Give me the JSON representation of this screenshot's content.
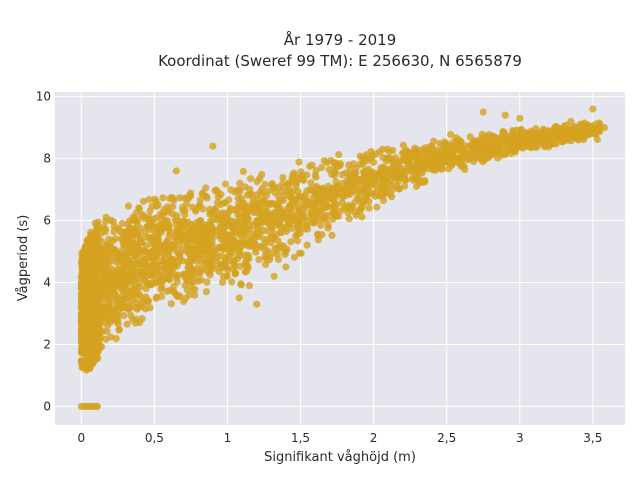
{
  "chart_data": {
    "type": "scatter",
    "title_line1": "År 1979 - 2019",
    "title_line2": "Koordinat (Sweref 99 TM): E 256630, N 6565879",
    "xlabel": "Signifikant våghöjd (m)",
    "ylabel": "Vågperiod (s)",
    "xlim": [
      -0.18,
      3.72
    ],
    "ylim": [
      -0.6,
      10.15
    ],
    "x_ticks": [
      0,
      0.5,
      1,
      1.5,
      2,
      2.5,
      3,
      3.5
    ],
    "x_tick_labels": [
      "0",
      "0,5",
      "1",
      "1,5",
      "2",
      "2,5",
      "3",
      "3,5"
    ],
    "y_ticks": [
      0,
      2,
      4,
      6,
      8,
      10
    ],
    "y_tick_labels": [
      "0",
      "2",
      "4",
      "6",
      "8",
      "10"
    ],
    "grid": true,
    "colors": {
      "marker": "#d4a320",
      "plot_bg": "#e5e5ee",
      "grid": "#ffffff"
    },
    "envelope": {
      "hs": [
        0.0,
        0.05,
        0.1,
        0.2,
        0.3,
        0.5,
        0.75,
        1.0,
        1.25,
        1.5,
        1.75,
        2.0,
        2.25,
        2.5,
        2.75,
        3.0,
        3.25,
        3.5
      ],
      "tp_low": [
        1.2,
        1.1,
        1.5,
        1.8,
        2.2,
        2.8,
        3.3,
        3.6,
        4.2,
        4.9,
        5.6,
        6.3,
        6.9,
        7.4,
        7.8,
        8.2,
        8.4,
        8.6
      ],
      "tp_high": [
        5.0,
        5.5,
        6.0,
        6.3,
        6.6,
        6.9,
        7.2,
        7.5,
        7.8,
        8.0,
        8.2,
        8.4,
        8.6,
        8.8,
        8.9,
        9.0,
        9.1,
        9.2
      ]
    },
    "outliers": [
      {
        "x": 0.0,
        "y": 0
      },
      {
        "x": 0.02,
        "y": 0
      },
      {
        "x": 0.04,
        "y": 0
      },
      {
        "x": 0.06,
        "y": 0
      },
      {
        "x": 0.08,
        "y": 0
      },
      {
        "x": 0.1,
        "y": 0
      },
      {
        "x": 0.11,
        "y": 0
      },
      {
        "x": 0.9,
        "y": 8.4
      },
      {
        "x": 0.65,
        "y": 7.6
      },
      {
        "x": 1.08,
        "y": 3.5
      },
      {
        "x": 1.15,
        "y": 3.9
      },
      {
        "x": 1.32,
        "y": 4.2
      },
      {
        "x": 1.4,
        "y": 4.5
      },
      {
        "x": 1.2,
        "y": 3.3
      },
      {
        "x": 2.75,
        "y": 9.5
      },
      {
        "x": 3.0,
        "y": 9.3
      },
      {
        "x": 3.5,
        "y": 9.6
      },
      {
        "x": 3.58,
        "y": 9.0
      },
      {
        "x": 3.52,
        "y": 8.8
      },
      {
        "x": 3.35,
        "y": 9.2
      },
      {
        "x": 2.9,
        "y": 9.4
      },
      {
        "x": 3.12,
        "y": 8.7
      }
    ]
  }
}
